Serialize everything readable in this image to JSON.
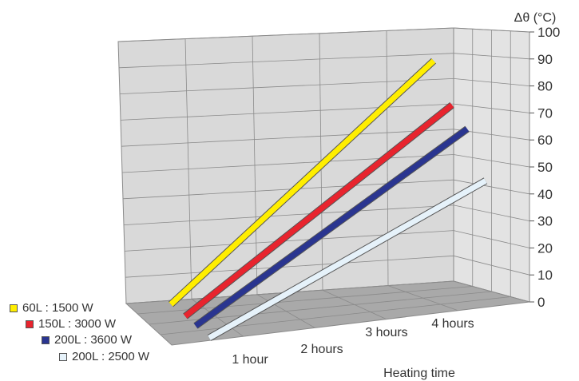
{
  "chart_data": {
    "type": "line",
    "style": "3d-ribbon",
    "x_categories": [
      "1 hour",
      "2 hours",
      "3 hours",
      "4 hours"
    ],
    "xlabel": "Heating time",
    "ylabel": "Δθ (°C)",
    "ylim": [
      0,
      100
    ],
    "y_ticks": [
      "0",
      "10",
      "20",
      "30",
      "40",
      "50",
      "60",
      "70",
      "80",
      "90",
      "100"
    ],
    "grid": true,
    "legend_position": "bottom-left",
    "series": [
      {
        "name": "60L : 1500 W",
        "color": "#FFEE00",
        "x": [
          0,
          4
        ],
        "values": [
          0,
          88
        ]
      },
      {
        "name": "150L : 3000 W",
        "color": "#E8242E",
        "x": [
          0,
          4
        ],
        "values": [
          0,
          71
        ]
      },
      {
        "name": "200L : 3600 W",
        "color": "#2A3590",
        "x": [
          0,
          4
        ],
        "values": [
          0,
          62
        ]
      },
      {
        "name": "200L : 2500 W",
        "color": "#E6F2FA",
        "x": [
          0,
          4
        ],
        "values": [
          0,
          42
        ]
      }
    ]
  }
}
